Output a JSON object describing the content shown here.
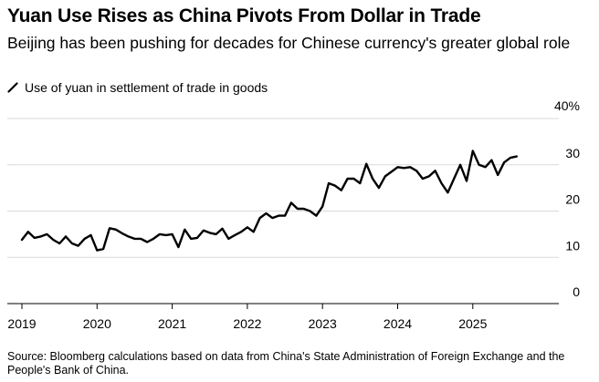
{
  "title": "Yuan Use Rises as China Pivots From Dollar in Trade",
  "subtitle": "Beijing has been pushing for decades for Chinese currency's greater global role",
  "legend": {
    "label": "Use of yuan in settlement of trade in goods"
  },
  "source": "Source: Bloomberg calculations based on data from China's State Administration of Foreign Exchange and the People's Bank of China.",
  "colors": {
    "line": "#000000",
    "grid": "#d9d9d9",
    "axis": "#000000"
  },
  "chart_data": {
    "type": "line",
    "title": "Yuan Use Rises as China Pivots From Dollar in Trade",
    "xlabel": "",
    "ylabel": "",
    "ylim": [
      0,
      40
    ],
    "xlim": [
      2019,
      2026
    ],
    "grid": true,
    "y_ticks": [
      {
        "value": 0,
        "label": "0"
      },
      {
        "value": 10,
        "label": "10"
      },
      {
        "value": 20,
        "label": "20"
      },
      {
        "value": 30,
        "label": "30"
      },
      {
        "value": 40,
        "label": "40%"
      }
    ],
    "x_ticks": [
      {
        "value": 2019,
        "label": "2019"
      },
      {
        "value": 2020,
        "label": "2020"
      },
      {
        "value": 2021,
        "label": "2021"
      },
      {
        "value": 2022,
        "label": "2022"
      },
      {
        "value": 2023,
        "label": "2023"
      },
      {
        "value": 2024,
        "label": "2024"
      },
      {
        "value": 2025,
        "label": "2025"
      }
    ],
    "series": [
      {
        "name": "Use of yuan in settlement of trade in goods",
        "x": [
          2019.0,
          2019.083,
          2019.167,
          2019.25,
          2019.333,
          2019.417,
          2019.5,
          2019.583,
          2019.667,
          2019.75,
          2019.833,
          2019.917,
          2020.0,
          2020.083,
          2020.167,
          2020.25,
          2020.333,
          2020.417,
          2020.5,
          2020.583,
          2020.667,
          2020.75,
          2020.833,
          2020.917,
          2021.0,
          2021.083,
          2021.167,
          2021.25,
          2021.333,
          2021.417,
          2021.5,
          2021.583,
          2021.667,
          2021.75,
          2021.833,
          2021.917,
          2022.0,
          2022.083,
          2022.167,
          2022.25,
          2022.333,
          2022.417,
          2022.5,
          2022.583,
          2022.667,
          2022.75,
          2022.833,
          2022.917,
          2023.0,
          2023.083,
          2023.167,
          2023.25,
          2023.333,
          2023.417,
          2023.5,
          2023.583,
          2023.667,
          2023.75,
          2023.833,
          2023.917,
          2024.0,
          2024.083,
          2024.167,
          2024.25,
          2024.333,
          2024.417,
          2024.5,
          2024.583,
          2024.667,
          2024.75,
          2024.833,
          2024.917,
          2025.0,
          2025.083,
          2025.167,
          2025.25,
          2025.333,
          2025.417,
          2025.5,
          2025.583
        ],
        "values": [
          13.8,
          15.5,
          14.2,
          14.5,
          15.0,
          13.8,
          13.0,
          14.5,
          13.0,
          12.5,
          14.0,
          14.8,
          11.5,
          11.8,
          16.3,
          16.0,
          15.2,
          14.5,
          14.0,
          14.0,
          13.3,
          14.0,
          15.0,
          14.8,
          15.0,
          12.2,
          16.0,
          14.0,
          14.2,
          15.8,
          15.3,
          15.0,
          16.2,
          14.0,
          14.8,
          15.5,
          16.5,
          15.5,
          18.5,
          19.5,
          18.5,
          19.0,
          19.0,
          21.8,
          20.5,
          20.5,
          20.0,
          19.0,
          21.0,
          26.0,
          25.5,
          24.5,
          27.0,
          27.0,
          26.0,
          30.2,
          27.0,
          25.0,
          27.5,
          28.5,
          29.5,
          29.3,
          29.5,
          28.7,
          27.0,
          27.5,
          28.7,
          26.0,
          24.0,
          27.0,
          30.0,
          26.5,
          33.0,
          30.0,
          29.5,
          31.0,
          27.8,
          30.5,
          31.5,
          31.8
        ]
      }
    ]
  }
}
